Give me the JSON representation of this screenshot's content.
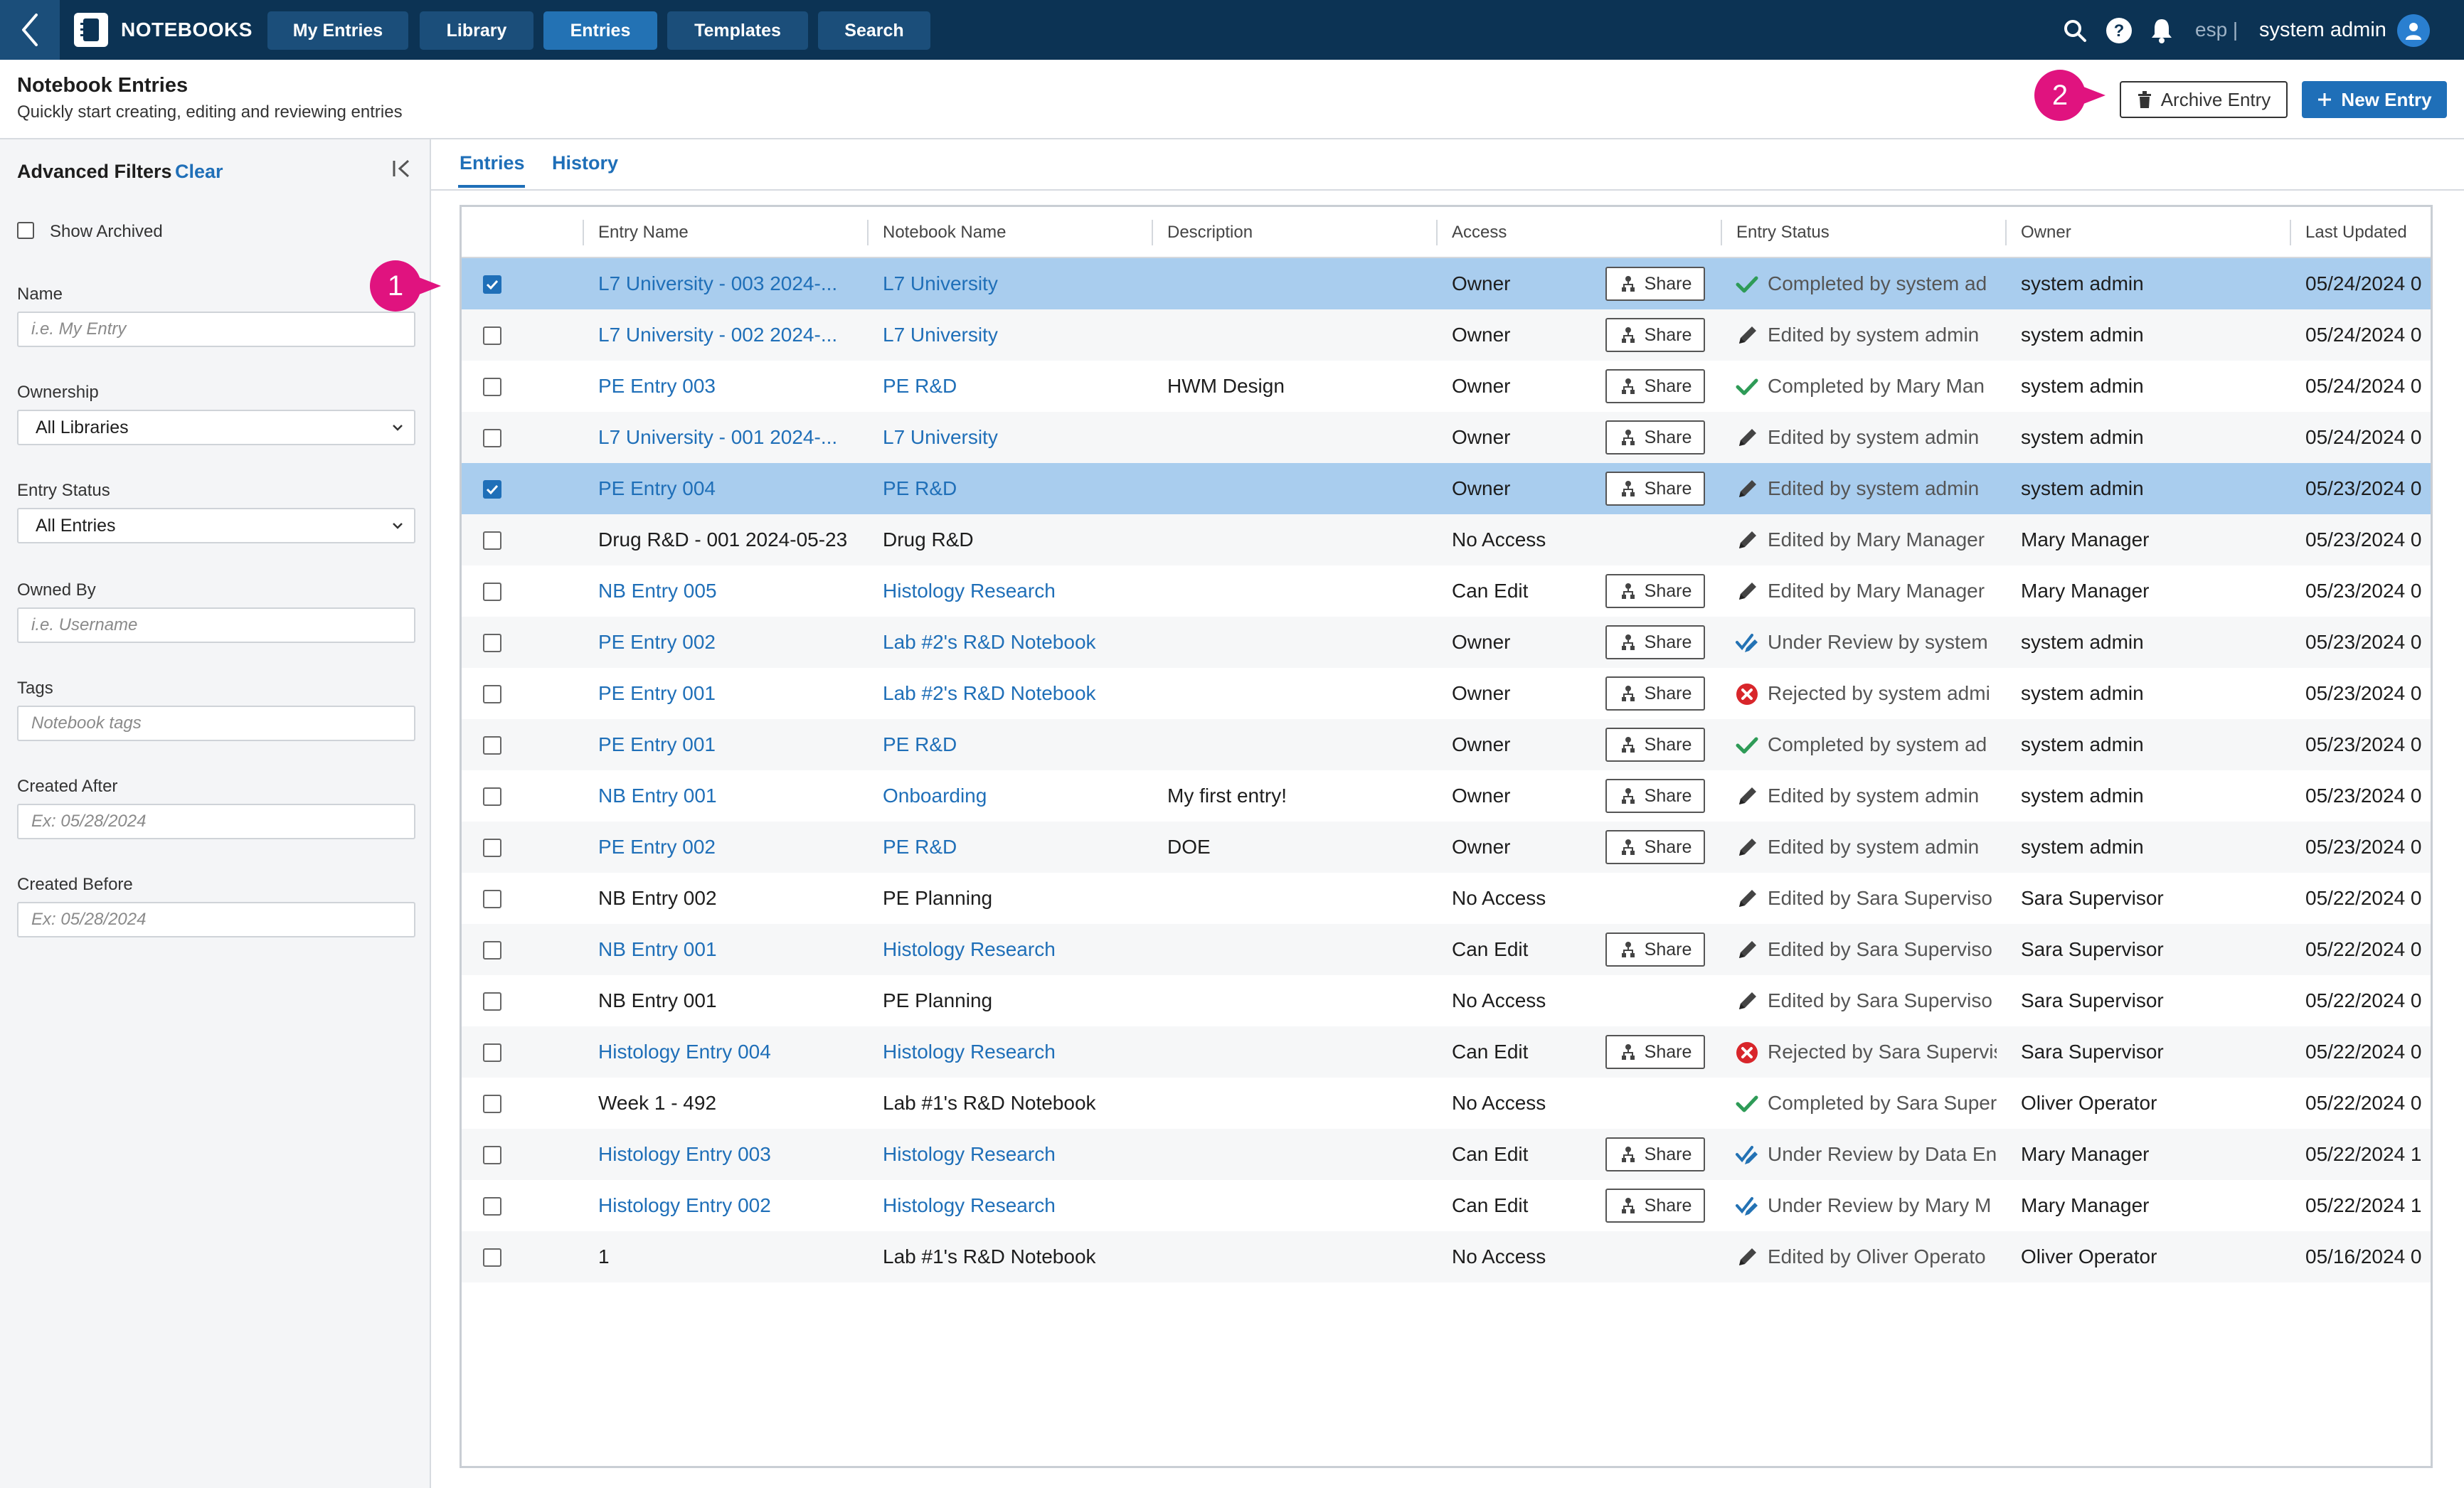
{
  "app": {
    "title": "NOTEBOOKS"
  },
  "nav": [
    {
      "label": "My Entries",
      "active": false
    },
    {
      "label": "Library",
      "active": false
    },
    {
      "label": "Entries",
      "active": true
    },
    {
      "label": "Templates",
      "active": false
    },
    {
      "label": "Search",
      "active": false
    }
  ],
  "user": {
    "lang": "esp |",
    "name": "system admin"
  },
  "header": {
    "title": "Notebook Entries",
    "subtitle": "Quickly start creating, editing and reviewing entries",
    "archive_label": "Archive Entry",
    "new_label": "New Entry",
    "callout_1": "1",
    "callout_2": "2"
  },
  "filters": {
    "title": "Advanced Filters",
    "clear": "Clear",
    "show_archived": "Show Archived",
    "name_label": "Name",
    "name_placeholder": "i.e. My Entry",
    "ownership_label": "Ownership",
    "ownership_value": "All Libraries",
    "status_label": "Entry Status",
    "status_value": "All Entries",
    "owned_by_label": "Owned By",
    "owned_by_placeholder": "i.e. Username",
    "tags_label": "Tags",
    "tags_placeholder": "Notebook tags",
    "created_after_label": "Created After",
    "created_after_placeholder": "Ex: 05/28/2024",
    "created_before_label": "Created Before",
    "created_before_placeholder": "Ex: 05/28/2024"
  },
  "tabs": [
    {
      "label": "Entries",
      "active": true
    },
    {
      "label": "History",
      "active": false
    }
  ],
  "columns": [
    "Entry Name",
    "Notebook Name",
    "Description",
    "Access",
    "Entry Status",
    "Owner",
    "Last Updated"
  ],
  "share_label": "Share",
  "colors": {
    "topbar": "#0c3354",
    "accent": "#1f6fb8",
    "selected_row": "#a9cdee",
    "callout": "#e0137f"
  },
  "rows": [
    {
      "selected": true,
      "entry": "L7 University - 003 2024-...",
      "entry_link": true,
      "notebook": "L7 University",
      "notebook_link": true,
      "description": "",
      "access": "Owner",
      "share": true,
      "status_icon": "check-icon",
      "status": "Completed by system ad",
      "owner": "system admin",
      "updated": "05/24/2024 0"
    },
    {
      "selected": false,
      "entry": "L7 University - 002 2024-...",
      "entry_link": true,
      "notebook": "L7 University",
      "notebook_link": true,
      "description": "",
      "access": "Owner",
      "share": true,
      "status_icon": "pencil-icon",
      "status": "Edited by system admin",
      "owner": "system admin",
      "updated": "05/24/2024 0"
    },
    {
      "selected": false,
      "entry": "PE Entry 003",
      "entry_link": true,
      "notebook": "PE R&D",
      "notebook_link": true,
      "description": "HWM Design",
      "access": "Owner",
      "share": true,
      "status_icon": "check-icon",
      "status": "Completed by Mary Man",
      "owner": "system admin",
      "updated": "05/24/2024 0"
    },
    {
      "selected": false,
      "entry": "L7 University - 001 2024-...",
      "entry_link": true,
      "notebook": "L7 University",
      "notebook_link": true,
      "description": "",
      "access": "Owner",
      "share": true,
      "status_icon": "pencil-icon",
      "status": "Edited by system admin",
      "owner": "system admin",
      "updated": "05/24/2024 0"
    },
    {
      "selected": true,
      "entry": "PE Entry 004",
      "entry_link": true,
      "notebook": "PE R&D",
      "notebook_link": true,
      "description": "",
      "access": "Owner",
      "share": true,
      "status_icon": "pencil-icon",
      "status": "Edited by system admin",
      "owner": "system admin",
      "updated": "05/23/2024 0"
    },
    {
      "selected": false,
      "entry": "Drug R&D - 001 2024-05-23",
      "entry_link": false,
      "notebook": "Drug R&D",
      "notebook_link": false,
      "description": "",
      "access": "No Access",
      "share": false,
      "status_icon": "pencil-icon",
      "status": "Edited by Mary Manager",
      "owner": "Mary Manager",
      "updated": "05/23/2024 0"
    },
    {
      "selected": false,
      "entry": "NB Entry 005",
      "entry_link": true,
      "notebook": "Histology Research",
      "notebook_link": true,
      "description": "",
      "access": "Can Edit",
      "share": true,
      "status_icon": "pencil-icon",
      "status": "Edited by Mary Manager",
      "owner": "Mary Manager",
      "updated": "05/23/2024 0"
    },
    {
      "selected": false,
      "entry": "PE Entry 002",
      "entry_link": true,
      "notebook": "Lab #2's R&D Notebook",
      "notebook_link": true,
      "description": "",
      "access": "Owner",
      "share": true,
      "status_icon": "review-icon",
      "status": "Under Review by system",
      "owner": "system admin",
      "updated": "05/23/2024 0"
    },
    {
      "selected": false,
      "entry": "PE Entry 001",
      "entry_link": true,
      "notebook": "Lab #2's R&D Notebook",
      "notebook_link": true,
      "description": "",
      "access": "Owner",
      "share": true,
      "status_icon": "rejected-icon",
      "status": "Rejected by system admi",
      "owner": "system admin",
      "updated": "05/23/2024 0"
    },
    {
      "selected": false,
      "entry": "PE Entry 001",
      "entry_link": true,
      "notebook": "PE R&D",
      "notebook_link": true,
      "description": "",
      "access": "Owner",
      "share": true,
      "status_icon": "check-icon",
      "status": "Completed by system ad",
      "owner": "system admin",
      "updated": "05/23/2024 0"
    },
    {
      "selected": false,
      "entry": "NB Entry 001",
      "entry_link": true,
      "notebook": "Onboarding",
      "notebook_link": true,
      "description": "My first entry!",
      "access": "Owner",
      "share": true,
      "status_icon": "pencil-icon",
      "status": "Edited by system admin",
      "owner": "system admin",
      "updated": "05/23/2024 0"
    },
    {
      "selected": false,
      "entry": "PE Entry 002",
      "entry_link": true,
      "notebook": "PE R&D",
      "notebook_link": true,
      "description": "DOE",
      "access": "Owner",
      "share": true,
      "status_icon": "pencil-icon",
      "status": "Edited by system admin",
      "owner": "system admin",
      "updated": "05/23/2024 0"
    },
    {
      "selected": false,
      "entry": "NB Entry 002",
      "entry_link": false,
      "notebook": "PE Planning",
      "notebook_link": false,
      "description": "",
      "access": "No Access",
      "share": false,
      "status_icon": "pencil-icon",
      "status": "Edited by Sara Superviso",
      "owner": "Sara Supervisor",
      "updated": "05/22/2024 0"
    },
    {
      "selected": false,
      "entry": "NB Entry 001",
      "entry_link": true,
      "notebook": "Histology Research",
      "notebook_link": true,
      "description": "",
      "access": "Can Edit",
      "share": true,
      "status_icon": "pencil-icon",
      "status": "Edited by Sara Superviso",
      "owner": "Sara Supervisor",
      "updated": "05/22/2024 0"
    },
    {
      "selected": false,
      "entry": "NB Entry 001",
      "entry_link": false,
      "notebook": "PE Planning",
      "notebook_link": false,
      "description": "",
      "access": "No Access",
      "share": false,
      "status_icon": "pencil-icon",
      "status": "Edited by Sara Superviso",
      "owner": "Sara Supervisor",
      "updated": "05/22/2024 0"
    },
    {
      "selected": false,
      "entry": "Histology Entry 004",
      "entry_link": true,
      "notebook": "Histology Research",
      "notebook_link": true,
      "description": "",
      "access": "Can Edit",
      "share": true,
      "status_icon": "rejected-icon",
      "status": "Rejected by Sara Supervis",
      "owner": "Sara Supervisor",
      "updated": "05/22/2024 0"
    },
    {
      "selected": false,
      "entry": "Week 1 - 492",
      "entry_link": false,
      "notebook": "Lab #1's R&D Notebook",
      "notebook_link": false,
      "description": "",
      "access": "No Access",
      "share": false,
      "status_icon": "check-icon",
      "status": "Completed by Sara Super",
      "owner": "Oliver Operator",
      "updated": "05/22/2024 0"
    },
    {
      "selected": false,
      "entry": "Histology Entry 003",
      "entry_link": true,
      "notebook": "Histology Research",
      "notebook_link": true,
      "description": "",
      "access": "Can Edit",
      "share": true,
      "status_icon": "review-icon",
      "status": "Under Review by Data En",
      "owner": "Mary Manager",
      "updated": "05/22/2024 1"
    },
    {
      "selected": false,
      "entry": "Histology Entry 002",
      "entry_link": true,
      "notebook": "Histology Research",
      "notebook_link": true,
      "description": "",
      "access": "Can Edit",
      "share": true,
      "status_icon": "review-icon",
      "status": "Under Review by Mary M",
      "owner": "Mary Manager",
      "updated": "05/22/2024 1"
    },
    {
      "selected": false,
      "entry": "1",
      "entry_link": false,
      "notebook": "Lab #1's R&D Notebook",
      "notebook_link": false,
      "description": "",
      "access": "No Access",
      "share": false,
      "status_icon": "pencil-icon",
      "status": "Edited by Oliver Operato",
      "owner": "Oliver Operator",
      "updated": "05/16/2024 0"
    }
  ]
}
